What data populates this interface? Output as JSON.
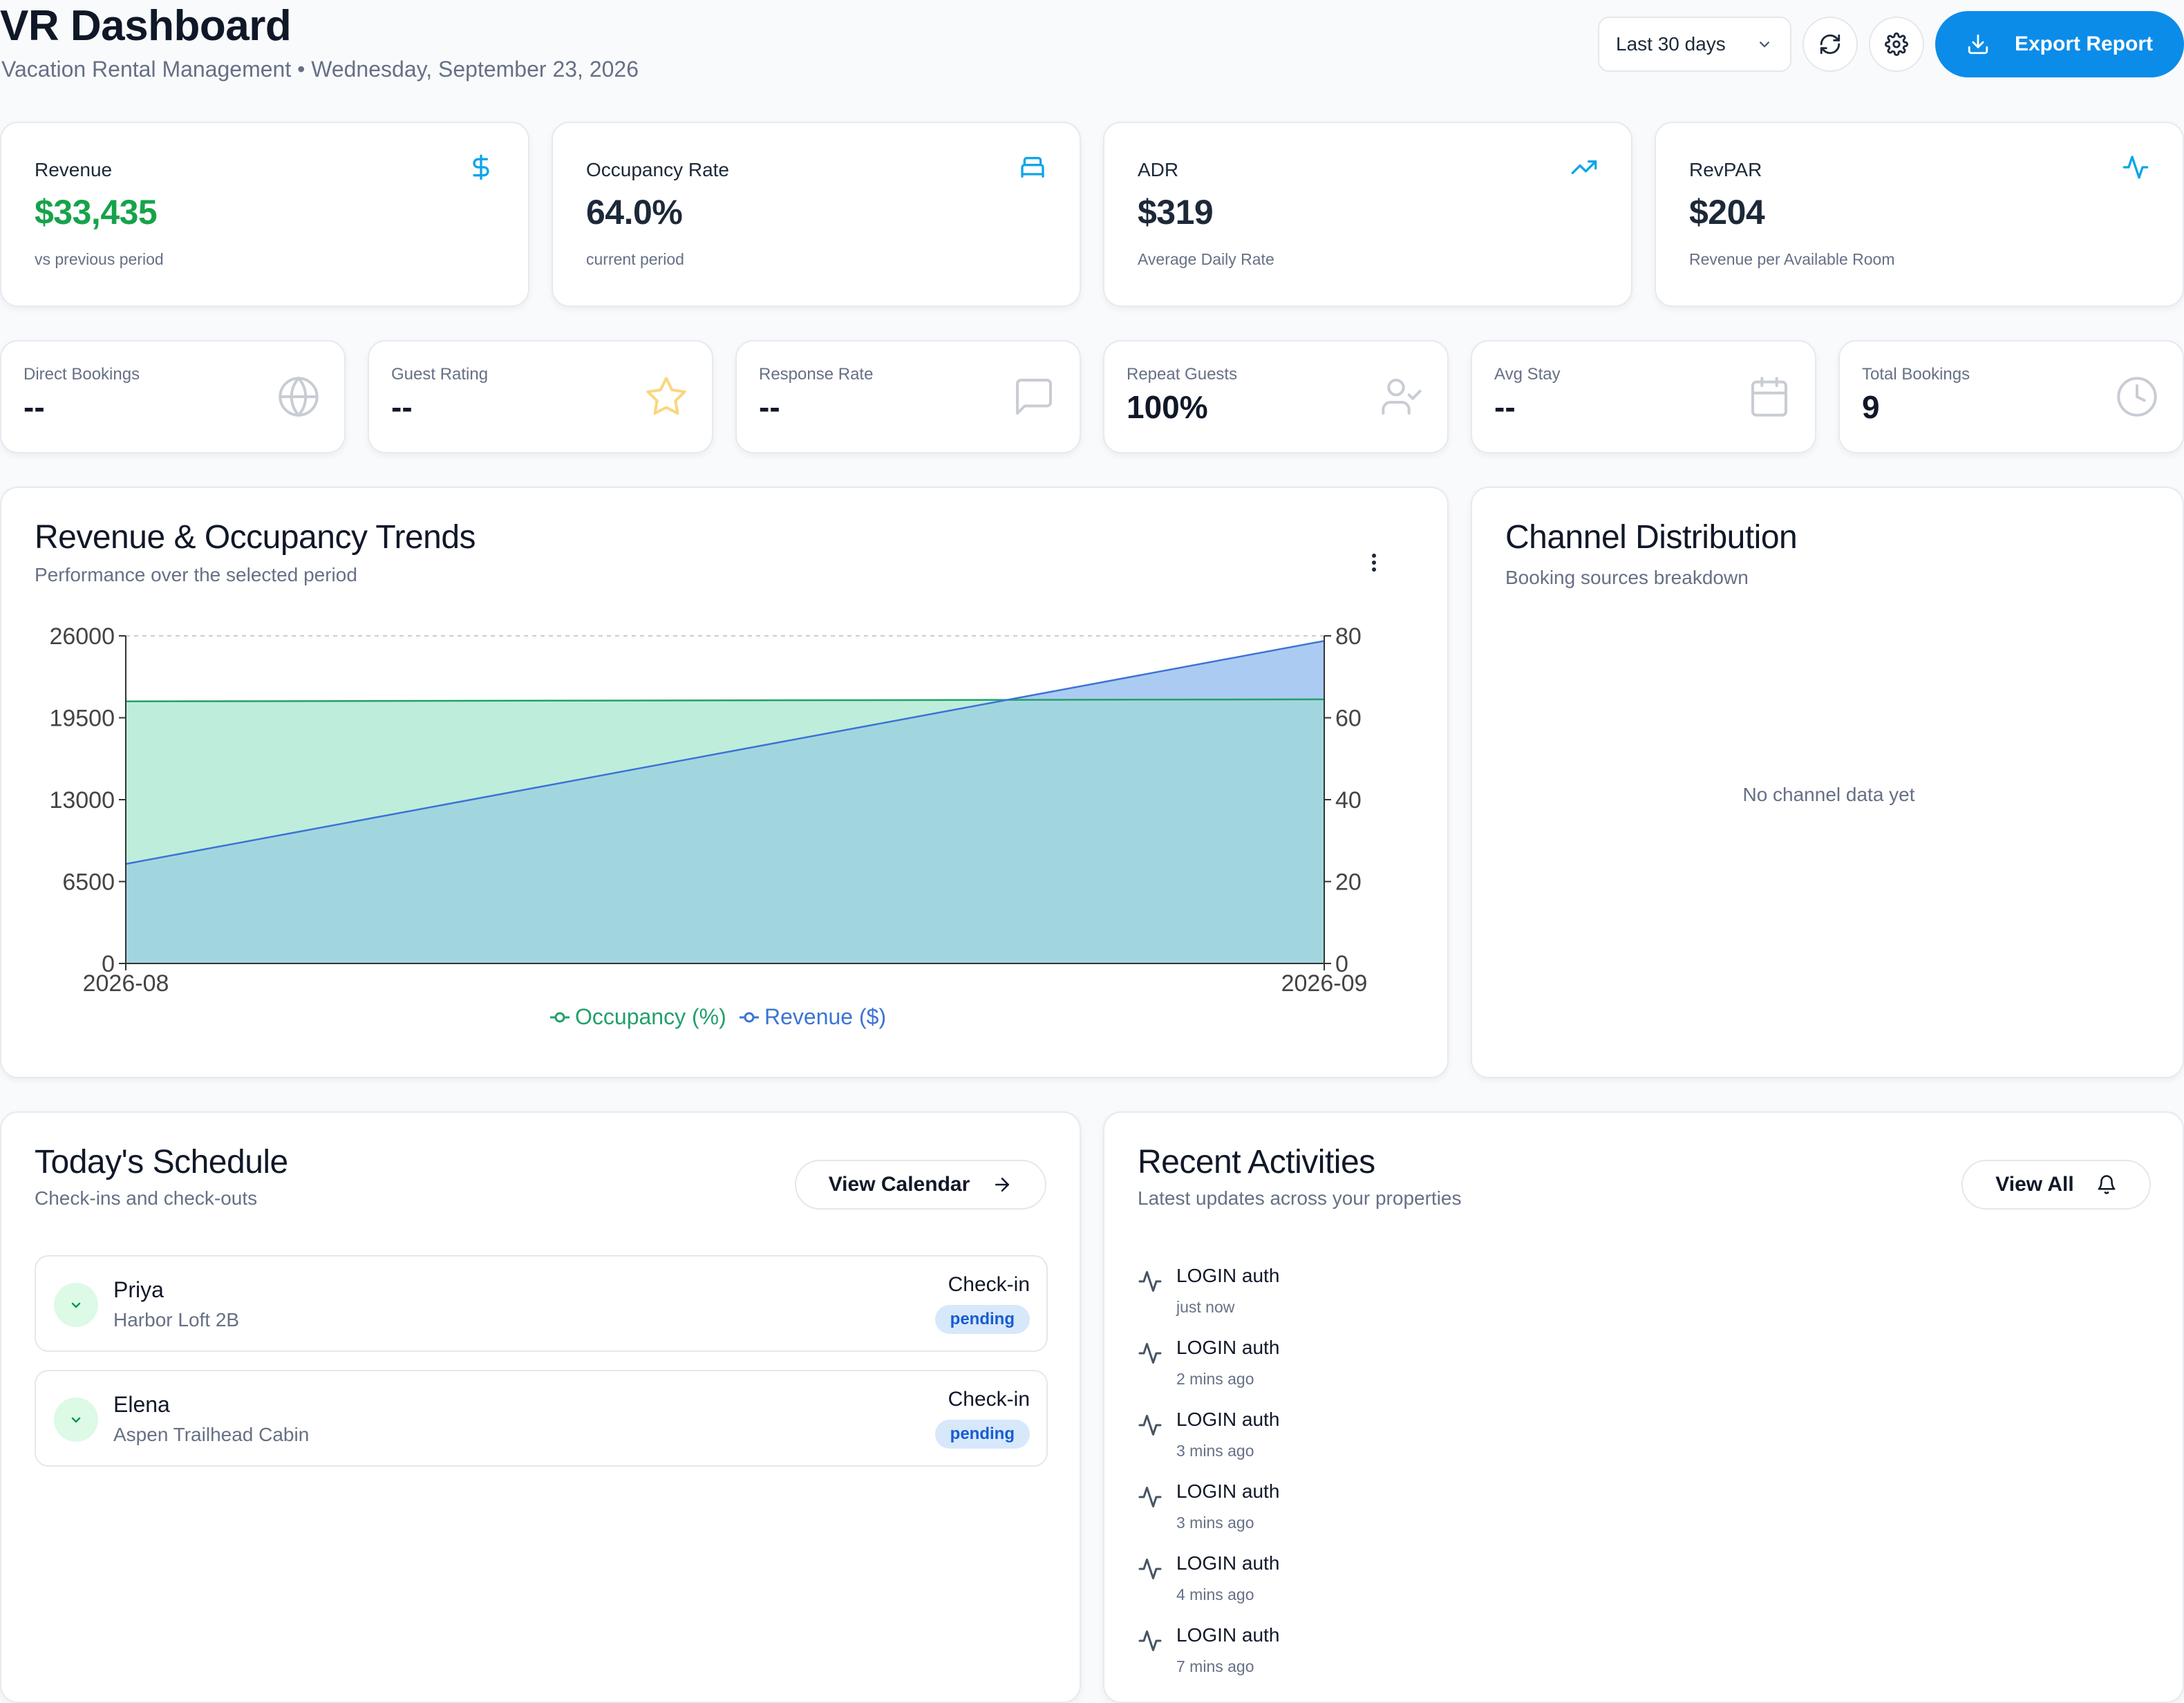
{
  "header": {
    "title": "VR Dashboard",
    "subtitle": "Vacation Rental Management • Wednesday, September 23, 2026",
    "period_select": "Last 30 days",
    "export_label": "Export Report"
  },
  "kpis": [
    {
      "label": "Revenue",
      "value": "$33,435",
      "sub": "vs previous period",
      "icon": "dollar-icon",
      "value_color": "#16a34a"
    },
    {
      "label": "Occupancy Rate",
      "value": "64.0%",
      "sub": "current period",
      "icon": "bed-icon"
    },
    {
      "label": "ADR",
      "value": "$319",
      "sub": "Average Daily Rate",
      "icon": "trending-up-icon"
    },
    {
      "label": "RevPAR",
      "value": "$204",
      "sub": "Revenue per Available Room",
      "icon": "activity-icon"
    }
  ],
  "stats": [
    {
      "label": "Direct Bookings",
      "value": "--",
      "icon": "globe-icon"
    },
    {
      "label": "Guest Rating",
      "value": "--",
      "icon": "star-icon"
    },
    {
      "label": "Response Rate",
      "value": "--",
      "icon": "message-icon"
    },
    {
      "label": "Repeat Guests",
      "value": "100%",
      "icon": "user-check-icon"
    },
    {
      "label": "Avg Stay",
      "value": "--",
      "icon": "calendar-icon"
    },
    {
      "label": "Total Bookings",
      "value": "9",
      "icon": "clock-icon"
    }
  ],
  "trends": {
    "title": "Revenue & Occupancy Trends",
    "subtitle": "Performance over the selected period"
  },
  "chart_data": {
    "type": "area",
    "x": [
      "2026-08",
      "2026-09"
    ],
    "series": [
      {
        "name": "Occupancy (%)",
        "axis": "right",
        "values": [
          64,
          64.5
        ],
        "color": "#22a06b",
        "fill": "#b3ead6"
      },
      {
        "name": "Revenue ($)",
        "axis": "left",
        "values": [
          7900,
          25600
        ],
        "color": "#3b74d4",
        "fill": "#c5d6f8"
      }
    ],
    "ylim_left": [
      0,
      26000
    ],
    "yticks_left": [
      "0",
      "6500",
      "13000",
      "19500",
      "26000"
    ],
    "ylim_right": [
      0,
      80
    ],
    "yticks_right": [
      "0",
      "20",
      "40",
      "60",
      "80"
    ],
    "legend": "bottom",
    "grid": false
  },
  "channels": {
    "title": "Channel Distribution",
    "subtitle": "Booking sources breakdown",
    "empty": "No channel data yet"
  },
  "schedule": {
    "title": "Today's Schedule",
    "subtitle": "Check-ins and check-outs",
    "button": "View Calendar",
    "items": [
      {
        "name": "Priya",
        "property": "Harbor Loft 2B",
        "type": "Check-in",
        "status": "pending"
      },
      {
        "name": "Elena",
        "property": "Aspen Trailhead Cabin",
        "type": "Check-in",
        "status": "pending"
      }
    ]
  },
  "activities": {
    "title": "Recent Activities",
    "subtitle": "Latest updates across your properties",
    "button": "View All",
    "items": [
      {
        "text": "LOGIN auth",
        "time": "just now"
      },
      {
        "text": "LOGIN auth",
        "time": "2 mins ago"
      },
      {
        "text": "LOGIN auth",
        "time": "3 mins ago"
      },
      {
        "text": "LOGIN auth",
        "time": "3 mins ago"
      },
      {
        "text": "LOGIN auth",
        "time": "4 mins ago"
      },
      {
        "text": "LOGIN auth",
        "time": "7 mins ago"
      }
    ]
  }
}
